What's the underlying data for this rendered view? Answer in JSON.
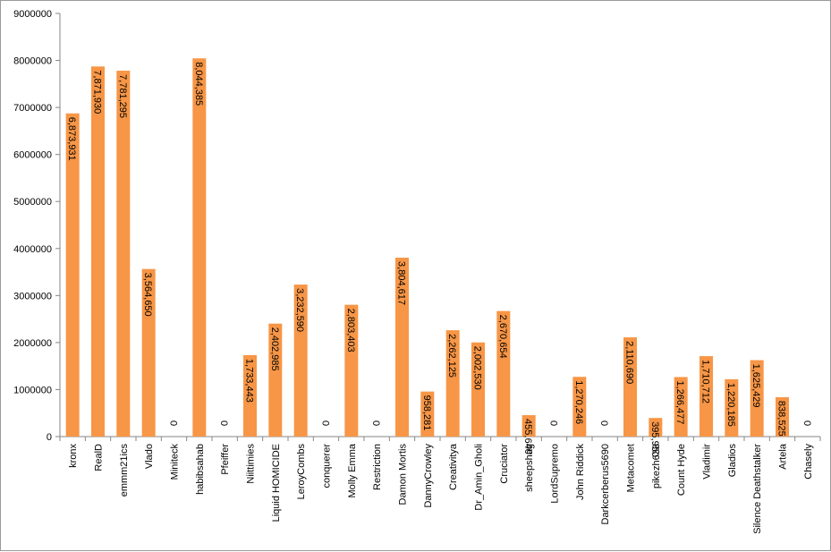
{
  "chart_data": {
    "type": "bar",
    "title": "",
    "xlabel": "",
    "ylabel": "",
    "ylim": [
      0,
      9000000
    ],
    "yticks": [
      "0",
      "1000000",
      "2000000",
      "3000000",
      "4000000",
      "5000000",
      "6000000",
      "7000000",
      "8000000",
      "9000000"
    ],
    "grid": false,
    "legend": "none",
    "bar_color": "#F79646",
    "categories": [
      "kronx",
      "RealD",
      "emmm21ics",
      "Vlado",
      "Miniteck",
      "habibsahab",
      "Pfeiffer",
      "Niittimies",
      "Liquid HOMICIDE",
      "LeroyCombs",
      "conquerer",
      "Molly Emma",
      "Restriction",
      "Damon Mortis",
      "DannyCrowley",
      "Creativitya",
      "Dr_Amin_Gholi",
      "Cruciator",
      "sheepshag",
      "LordSupremo",
      "John Riddick",
      "Darkcerberus5690",
      "Metacomet",
      "pikezh638",
      "Count Hyde",
      "Vladimir",
      "Gladios",
      "Silence Deathstalker",
      "Artela",
      "Chasely"
    ],
    "values": [
      6873931,
      7871930,
      7781295,
      3564650,
      0,
      8044385,
      0,
      1733443,
      2402985,
      3232590,
      0,
      2803403,
      0,
      3804617,
      958281,
      2262125,
      2002530,
      2670654,
      455640,
      0,
      1270246,
      0,
      2110690,
      395950,
      1266477,
      1710712,
      1220185,
      1625429,
      838525,
      0
    ],
    "data_labels": [
      "6,873,931",
      "7,871,930",
      "7,781,295",
      "3,564,650",
      "0",
      "8,044,385",
      "0",
      "1,733,443",
      "2,402,985",
      "3,232,590",
      "0",
      "2,803,403",
      "0",
      "3,804,617",
      "958,281",
      "2,262,125",
      "2,002,530",
      "2,670,654",
      "455,640",
      "0",
      "1,270,246",
      "0",
      "2,110,690",
      "395,950",
      "1,266,477",
      "1,710,712",
      "1,220,185",
      "1,625,429",
      "838,525",
      "0"
    ]
  }
}
